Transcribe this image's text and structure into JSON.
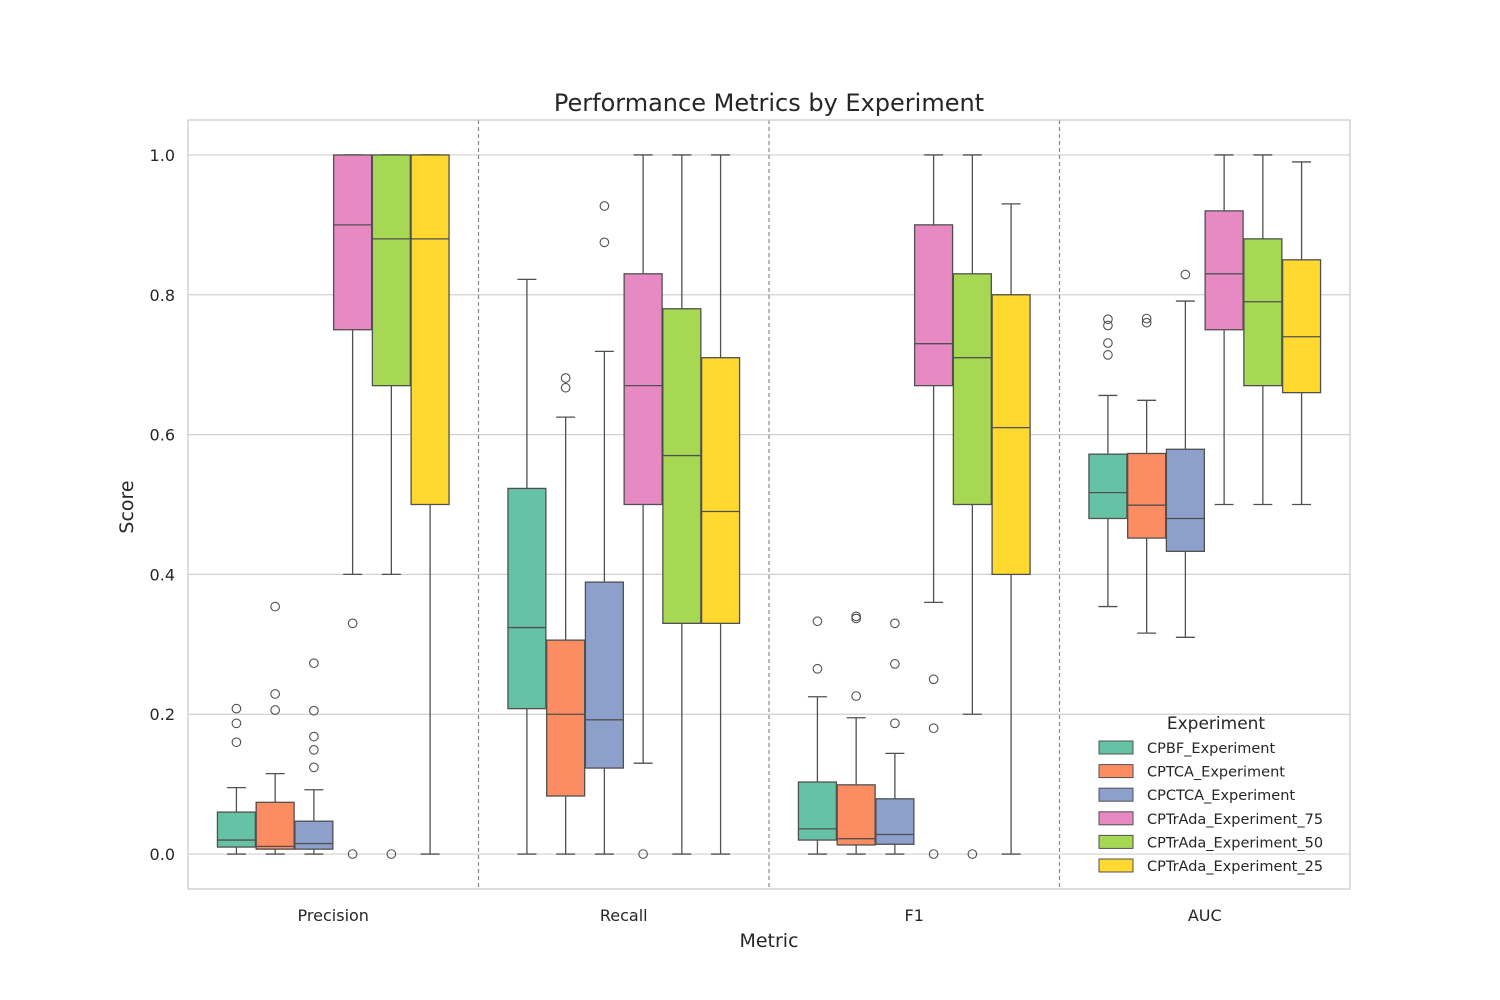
{
  "chart_data": {
    "type": "box",
    "title": "Performance Metrics by Experiment",
    "xlabel": "Metric",
    "ylabel": "Score",
    "ylim": [
      -0.05,
      1.05
    ],
    "yticks": [
      "0.0",
      "0.2",
      "0.4",
      "0.6",
      "0.8",
      "1.0"
    ],
    "grid": "horizontal",
    "categories": [
      "Precision",
      "Recall",
      "F1",
      "AUC"
    ],
    "legend": {
      "title": "Experiment",
      "placement": "lower-right"
    },
    "series": [
      {
        "name": "CPBF_Experiment",
        "color": "#66c2a5",
        "boxes": [
          {
            "whisker_low": 0.0,
            "q1": 0.01,
            "median": 0.02,
            "q3": 0.06,
            "whisker_high": 0.095,
            "outliers": [
              0.16,
              0.187,
              0.208
            ]
          },
          {
            "whisker_low": 0.0,
            "q1": 0.208,
            "median": 0.324,
            "q3": 0.523,
            "whisker_high": 0.822,
            "outliers": []
          },
          {
            "whisker_low": 0.0,
            "q1": 0.02,
            "median": 0.036,
            "q3": 0.103,
            "whisker_high": 0.225,
            "outliers": [
              0.265,
              0.333
            ]
          },
          {
            "whisker_low": 0.354,
            "q1": 0.48,
            "median": 0.517,
            "q3": 0.572,
            "whisker_high": 0.656,
            "outliers": [
              0.714,
              0.731,
              0.756,
              0.765
            ]
          }
        ]
      },
      {
        "name": "CPTCA_Experiment",
        "color": "#fc8d62",
        "boxes": [
          {
            "whisker_low": 0.0,
            "q1": 0.007,
            "median": 0.011,
            "q3": 0.074,
            "whisker_high": 0.115,
            "outliers": [
              0.206,
              0.229,
              0.354
            ]
          },
          {
            "whisker_low": 0.0,
            "q1": 0.083,
            "median": 0.2,
            "q3": 0.306,
            "whisker_high": 0.625,
            "outliers": [
              0.667,
              0.681
            ]
          },
          {
            "whisker_low": 0.0,
            "q1": 0.013,
            "median": 0.022,
            "q3": 0.099,
            "whisker_high": 0.195,
            "outliers": [
              0.226,
              0.337,
              0.34
            ]
          },
          {
            "whisker_low": 0.316,
            "q1": 0.452,
            "median": 0.499,
            "q3": 0.573,
            "whisker_high": 0.649,
            "outliers": [
              0.76,
              0.766
            ]
          }
        ]
      },
      {
        "name": "CPCTCA_Experiment",
        "color": "#8da0cb",
        "boxes": [
          {
            "whisker_low": 0.0,
            "q1": 0.007,
            "median": 0.015,
            "q3": 0.047,
            "whisker_high": 0.092,
            "outliers": [
              0.124,
              0.149,
              0.168,
              0.205,
              0.273
            ]
          },
          {
            "whisker_low": 0.0,
            "q1": 0.123,
            "median": 0.192,
            "q3": 0.389,
            "whisker_high": 0.719,
            "outliers": [
              0.875,
              0.927
            ]
          },
          {
            "whisker_low": 0.0,
            "q1": 0.014,
            "median": 0.028,
            "q3": 0.079,
            "whisker_high": 0.144,
            "outliers": [
              0.187,
              0.272,
              0.33
            ]
          },
          {
            "whisker_low": 0.31,
            "q1": 0.433,
            "median": 0.48,
            "q3": 0.579,
            "whisker_high": 0.791,
            "outliers": [
              0.829
            ]
          }
        ]
      },
      {
        "name": "CPTrAda_Experiment_75",
        "color": "#e78ac3",
        "boxes": [
          {
            "whisker_low": 0.4,
            "q1": 0.75,
            "median": 0.9,
            "q3": 1.0,
            "whisker_high": 1.0,
            "outliers": [
              0.0,
              0.33
            ]
          },
          {
            "whisker_low": 0.13,
            "q1": 0.5,
            "median": 0.67,
            "q3": 0.83,
            "whisker_high": 1.0,
            "outliers": [
              0.0
            ]
          },
          {
            "whisker_low": 0.36,
            "q1": 0.67,
            "median": 0.73,
            "q3": 0.9,
            "whisker_high": 1.0,
            "outliers": [
              0.0,
              0.18,
              0.25
            ]
          },
          {
            "whisker_low": 0.5,
            "q1": 0.75,
            "median": 0.83,
            "q3": 0.92,
            "whisker_high": 1.0,
            "outliers": []
          }
        ]
      },
      {
        "name": "CPTrAda_Experiment_50",
        "color": "#a6d854",
        "boxes": [
          {
            "whisker_low": 0.4,
            "q1": 0.67,
            "median": 0.88,
            "q3": 1.0,
            "whisker_high": 1.0,
            "outliers": [
              0.0
            ]
          },
          {
            "whisker_low": 0.0,
            "q1": 0.33,
            "median": 0.57,
            "q3": 0.78,
            "whisker_high": 1.0,
            "outliers": []
          },
          {
            "whisker_low": 0.2,
            "q1": 0.5,
            "median": 0.71,
            "q3": 0.83,
            "whisker_high": 1.0,
            "outliers": [
              0.0
            ]
          },
          {
            "whisker_low": 0.5,
            "q1": 0.67,
            "median": 0.79,
            "q3": 0.88,
            "whisker_high": 1.0,
            "outliers": []
          }
        ]
      },
      {
        "name": "CPTrAda_Experiment_25",
        "color": "#ffd92f",
        "boxes": [
          {
            "whisker_low": 0.0,
            "q1": 0.5,
            "median": 0.88,
            "q3": 1.0,
            "whisker_high": 1.0,
            "outliers": []
          },
          {
            "whisker_low": 0.0,
            "q1": 0.33,
            "median": 0.49,
            "q3": 0.71,
            "whisker_high": 1.0,
            "outliers": []
          },
          {
            "whisker_low": 0.0,
            "q1": 0.4,
            "median": 0.61,
            "q3": 0.8,
            "whisker_high": 0.93,
            "outliers": []
          },
          {
            "whisker_low": 0.5,
            "q1": 0.66,
            "median": 0.74,
            "q3": 0.85,
            "whisker_high": 0.99,
            "outliers": []
          }
        ]
      }
    ]
  }
}
